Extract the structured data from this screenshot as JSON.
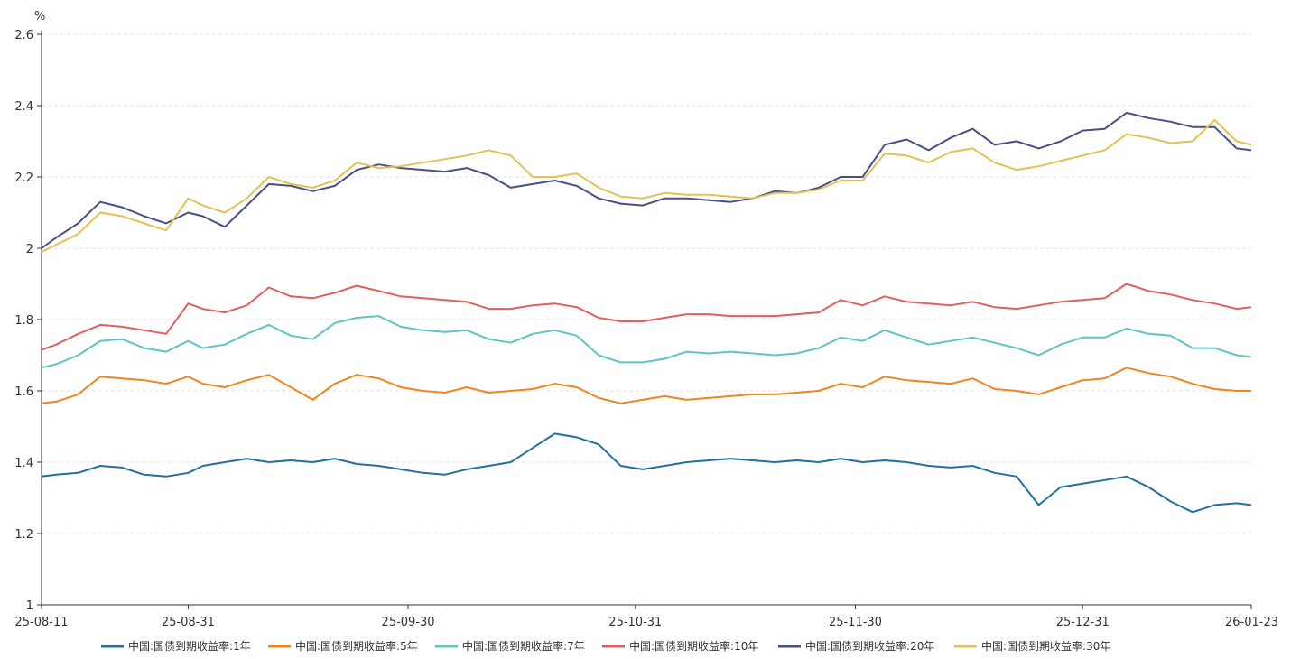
{
  "chart_data": {
    "type": "line",
    "title": "",
    "ylabel": "%",
    "xlabel": "",
    "ylim": [
      1,
      2.6
    ],
    "yticks": [
      "1",
      "1.2",
      "1.4",
      "1.6",
      "1.8",
      "2",
      "2.2",
      "2.4",
      "2.6"
    ],
    "x_ticks": [
      {
        "label": "25-08-11",
        "day": 0
      },
      {
        "label": "25-08-31",
        "day": 20
      },
      {
        "label": "25-09-30",
        "day": 50
      },
      {
        "label": "25-10-31",
        "day": 81
      },
      {
        "label": "25-11-30",
        "day": 111
      },
      {
        "label": "25-12-31",
        "day": 142
      },
      {
        "label": "26-01-23",
        "day": 165
      }
    ],
    "x_domain_days": [
      0,
      165
    ],
    "grid": "horizontal-dashed",
    "legend_position": "bottom",
    "series": [
      {
        "name": "中国:国债到期收益率:1年",
        "color": "#23729b",
        "days": [
          0,
          2,
          5,
          8,
          11,
          14,
          17,
          20,
          22,
          25,
          28,
          31,
          34,
          37,
          40,
          43,
          46,
          49,
          52,
          55,
          58,
          61,
          64,
          67,
          70,
          73,
          76,
          79,
          82,
          85,
          88,
          91,
          94,
          97,
          100,
          103,
          106,
          109,
          112,
          115,
          118,
          121,
          124,
          127,
          130,
          133,
          136,
          139,
          142,
          145,
          148,
          151,
          154,
          157,
          160,
          163,
          165
        ],
        "values": [
          1.36,
          1.365,
          1.37,
          1.39,
          1.385,
          1.365,
          1.36,
          1.37,
          1.39,
          1.4,
          1.41,
          1.4,
          1.405,
          1.4,
          1.41,
          1.395,
          1.39,
          1.38,
          1.37,
          1.365,
          1.38,
          1.39,
          1.4,
          1.44,
          1.48,
          1.47,
          1.45,
          1.39,
          1.38,
          1.39,
          1.4,
          1.405,
          1.41,
          1.405,
          1.4,
          1.405,
          1.4,
          1.41,
          1.4,
          1.405,
          1.4,
          1.39,
          1.385,
          1.39,
          1.37,
          1.36,
          1.28,
          1.33,
          1.34,
          1.35,
          1.36,
          1.33,
          1.29,
          1.26,
          1.28,
          1.285,
          1.28
        ]
      },
      {
        "name": "中国:国债到期收益率:5年",
        "color": "#f0851f",
        "days": [
          0,
          2,
          5,
          8,
          11,
          14,
          17,
          20,
          22,
          25,
          28,
          31,
          34,
          37,
          40,
          43,
          46,
          49,
          52,
          55,
          58,
          61,
          64,
          67,
          70,
          73,
          76,
          79,
          82,
          85,
          88,
          91,
          94,
          97,
          100,
          103,
          106,
          109,
          112,
          115,
          118,
          121,
          124,
          127,
          130,
          133,
          136,
          139,
          142,
          145,
          148,
          151,
          154,
          157,
          160,
          163,
          165
        ],
        "values": [
          1.565,
          1.57,
          1.59,
          1.64,
          1.635,
          1.63,
          1.62,
          1.64,
          1.62,
          1.61,
          1.63,
          1.645,
          1.61,
          1.575,
          1.62,
          1.645,
          1.635,
          1.61,
          1.6,
          1.595,
          1.61,
          1.595,
          1.6,
          1.605,
          1.62,
          1.61,
          1.58,
          1.565,
          1.575,
          1.585,
          1.575,
          1.58,
          1.585,
          1.59,
          1.59,
          1.595,
          1.6,
          1.62,
          1.61,
          1.64,
          1.63,
          1.625,
          1.62,
          1.635,
          1.605,
          1.6,
          1.59,
          1.61,
          1.63,
          1.635,
          1.665,
          1.65,
          1.64,
          1.62,
          1.605,
          1.6,
          1.6
        ]
      },
      {
        "name": "中国:国债到期收益率:7年",
        "color": "#5ec4c4",
        "days": [
          0,
          2,
          5,
          8,
          11,
          14,
          17,
          20,
          22,
          25,
          28,
          31,
          34,
          37,
          40,
          43,
          46,
          49,
          52,
          55,
          58,
          61,
          64,
          67,
          70,
          73,
          76,
          79,
          82,
          85,
          88,
          91,
          94,
          97,
          100,
          103,
          106,
          109,
          112,
          115,
          118,
          121,
          124,
          127,
          130,
          133,
          136,
          139,
          142,
          145,
          148,
          151,
          154,
          157,
          160,
          163,
          165
        ],
        "values": [
          1.665,
          1.675,
          1.7,
          1.74,
          1.745,
          1.72,
          1.71,
          1.74,
          1.72,
          1.73,
          1.76,
          1.785,
          1.755,
          1.745,
          1.79,
          1.805,
          1.81,
          1.78,
          1.77,
          1.765,
          1.77,
          1.745,
          1.735,
          1.76,
          1.77,
          1.755,
          1.7,
          1.68,
          1.68,
          1.69,
          1.71,
          1.705,
          1.71,
          1.705,
          1.7,
          1.705,
          1.72,
          1.75,
          1.74,
          1.77,
          1.75,
          1.73,
          1.74,
          1.75,
          1.735,
          1.72,
          1.7,
          1.73,
          1.75,
          1.75,
          1.775,
          1.76,
          1.755,
          1.72,
          1.72,
          1.7,
          1.695
        ]
      },
      {
        "name": "中国:国债到期收益率:10年",
        "color": "#e05f5f",
        "days": [
          0,
          2,
          5,
          8,
          11,
          14,
          17,
          20,
          22,
          25,
          28,
          31,
          34,
          37,
          40,
          43,
          46,
          49,
          52,
          55,
          58,
          61,
          64,
          67,
          70,
          73,
          76,
          79,
          82,
          85,
          88,
          91,
          94,
          97,
          100,
          103,
          106,
          109,
          112,
          115,
          118,
          121,
          124,
          127,
          130,
          133,
          136,
          139,
          142,
          145,
          148,
          151,
          154,
          157,
          160,
          163,
          165
        ],
        "values": [
          1.715,
          1.73,
          1.76,
          1.785,
          1.78,
          1.77,
          1.76,
          1.845,
          1.83,
          1.82,
          1.84,
          1.89,
          1.865,
          1.86,
          1.875,
          1.895,
          1.88,
          1.865,
          1.86,
          1.855,
          1.85,
          1.83,
          1.83,
          1.84,
          1.845,
          1.835,
          1.805,
          1.795,
          1.795,
          1.805,
          1.815,
          1.815,
          1.81,
          1.81,
          1.81,
          1.815,
          1.82,
          1.855,
          1.84,
          1.865,
          1.85,
          1.845,
          1.84,
          1.85,
          1.835,
          1.83,
          1.84,
          1.85,
          1.855,
          1.86,
          1.9,
          1.88,
          1.87,
          1.855,
          1.845,
          1.83,
          1.835
        ]
      },
      {
        "name": "中国:国债到期收益率:20年",
        "color": "#4a4f85",
        "days": [
          0,
          2,
          5,
          8,
          11,
          14,
          17,
          20,
          22,
          25,
          28,
          31,
          34,
          37,
          40,
          43,
          46,
          49,
          52,
          55,
          58,
          61,
          64,
          67,
          70,
          73,
          76,
          79,
          82,
          85,
          88,
          91,
          94,
          97,
          100,
          103,
          106,
          109,
          112,
          115,
          118,
          121,
          124,
          127,
          130,
          133,
          136,
          139,
          142,
          145,
          148,
          151,
          154,
          157,
          160,
          163,
          165
        ],
        "values": [
          2.0,
          2.03,
          2.07,
          2.13,
          2.115,
          2.09,
          2.07,
          2.1,
          2.09,
          2.06,
          2.12,
          2.18,
          2.175,
          2.16,
          2.175,
          2.22,
          2.235,
          2.225,
          2.22,
          2.215,
          2.225,
          2.205,
          2.17,
          2.18,
          2.19,
          2.175,
          2.14,
          2.125,
          2.12,
          2.14,
          2.14,
          2.135,
          2.13,
          2.14,
          2.16,
          2.155,
          2.17,
          2.2,
          2.2,
          2.29,
          2.305,
          2.275,
          2.31,
          2.335,
          2.29,
          2.3,
          2.28,
          2.3,
          2.33,
          2.335,
          2.38,
          2.365,
          2.355,
          2.34,
          2.34,
          2.28,
          2.275
        ]
      },
      {
        "name": "中国:国债到期收益率:30年",
        "color": "#e3c253",
        "days": [
          0,
          2,
          5,
          8,
          11,
          14,
          17,
          20,
          22,
          25,
          28,
          31,
          34,
          37,
          40,
          43,
          46,
          49,
          52,
          55,
          58,
          61,
          64,
          67,
          70,
          73,
          76,
          79,
          82,
          85,
          88,
          91,
          94,
          97,
          100,
          103,
          106,
          109,
          112,
          115,
          118,
          121,
          124,
          127,
          130,
          133,
          136,
          139,
          142,
          145,
          148,
          151,
          154,
          157,
          160,
          163,
          165
        ],
        "values": [
          1.99,
          2.01,
          2.04,
          2.1,
          2.09,
          2.07,
          2.05,
          2.14,
          2.12,
          2.1,
          2.14,
          2.2,
          2.18,
          2.17,
          2.19,
          2.24,
          2.225,
          2.23,
          2.24,
          2.25,
          2.26,
          2.275,
          2.26,
          2.2,
          2.2,
          2.21,
          2.17,
          2.145,
          2.14,
          2.155,
          2.15,
          2.15,
          2.145,
          2.14,
          2.155,
          2.155,
          2.165,
          2.19,
          2.19,
          2.265,
          2.26,
          2.24,
          2.27,
          2.28,
          2.24,
          2.22,
          2.23,
          2.245,
          2.26,
          2.275,
          2.32,
          2.31,
          2.295,
          2.3,
          2.36,
          2.3,
          2.29
        ]
      }
    ]
  }
}
